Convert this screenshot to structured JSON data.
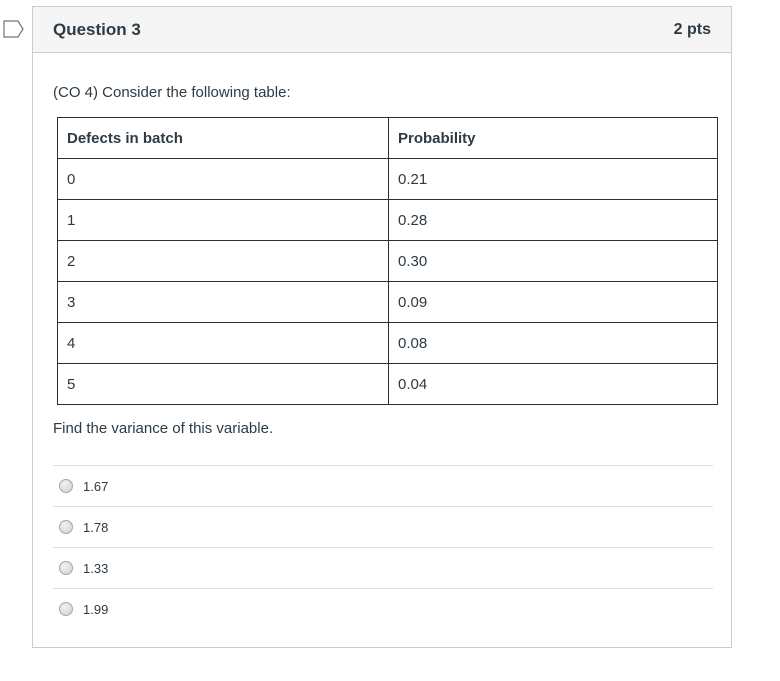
{
  "question": {
    "title": "Question 3",
    "points": "2 pts",
    "intro": "(CO 4) Consider the following table:",
    "prompt": "Find the variance of this variable."
  },
  "table": {
    "headers": [
      "Defects in batch",
      "Probability"
    ],
    "rows": [
      [
        "0",
        "0.21"
      ],
      [
        "1",
        "0.28"
      ],
      [
        "2",
        "0.30"
      ],
      [
        "3",
        "0.09"
      ],
      [
        "4",
        "0.08"
      ],
      [
        "5",
        "0.04"
      ]
    ]
  },
  "answers": [
    {
      "label": "1.67"
    },
    {
      "label": "1.78"
    },
    {
      "label": "1.33"
    },
    {
      "label": "1.99"
    }
  ]
}
